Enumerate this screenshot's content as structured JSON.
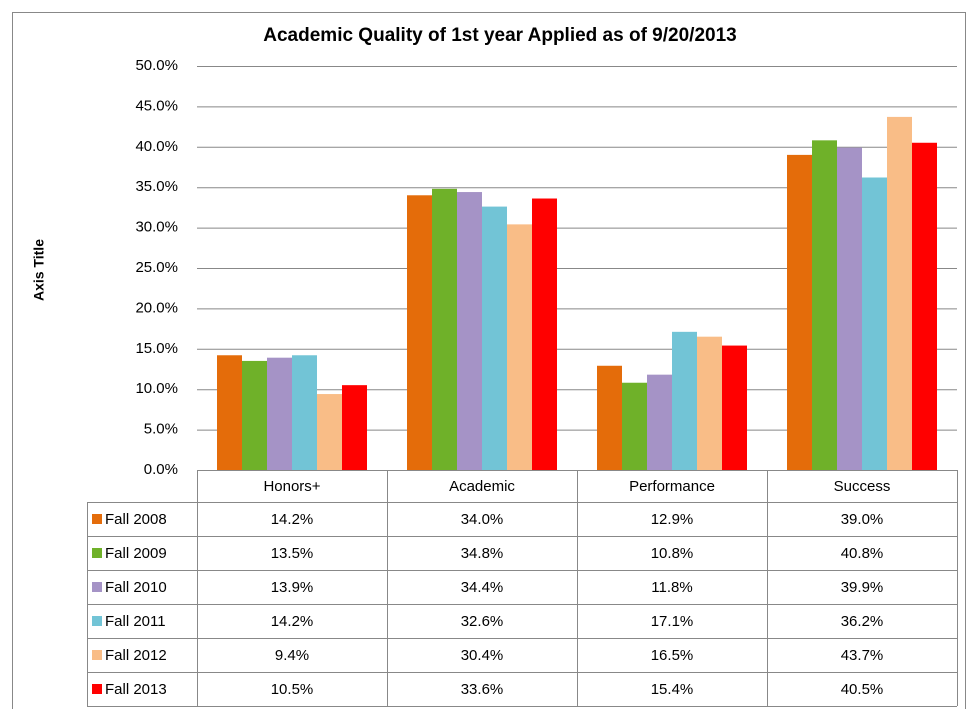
{
  "chart_data": {
    "type": "bar",
    "title": "Academic Quality of 1st year Applied as of 9/20/2013",
    "y_axis_label": "Axis Title",
    "categories": [
      "Honors+",
      "Academic",
      "Performance",
      "Success"
    ],
    "series": [
      {
        "name": "Fall 2008",
        "color": "#e46c0a",
        "values": [
          14.2,
          34.0,
          12.9,
          39.0
        ],
        "value_labels": [
          "14.2%",
          "34.0%",
          "12.9%",
          "39.0%"
        ]
      },
      {
        "name": "Fall 2009",
        "color": "#6fb129",
        "values": [
          13.5,
          34.8,
          10.8,
          40.8
        ],
        "value_labels": [
          "13.5%",
          "34.8%",
          "10.8%",
          "40.8%"
        ]
      },
      {
        "name": "Fall 2010",
        "color": "#a593c6",
        "values": [
          13.9,
          34.4,
          11.8,
          39.9
        ],
        "value_labels": [
          "13.9%",
          "34.4%",
          "11.8%",
          "39.9%"
        ]
      },
      {
        "name": "Fall 2011",
        "color": "#72c4d6",
        "values": [
          14.2,
          32.6,
          17.1,
          36.2
        ],
        "value_labels": [
          "14.2%",
          "32.6%",
          "17.1%",
          "36.2%"
        ]
      },
      {
        "name": "Fall 2012",
        "color": "#f9bd87",
        "values": [
          9.4,
          30.4,
          16.5,
          43.7
        ],
        "value_labels": [
          "9.4%",
          "30.4%",
          "16.5%",
          "43.7%"
        ]
      },
      {
        "name": "Fall 2013",
        "color": "#ff0000",
        "values": [
          10.5,
          33.6,
          15.4,
          40.5
        ],
        "value_labels": [
          "10.5%",
          "33.6%",
          "15.4%",
          "40.5%"
        ]
      }
    ],
    "ylim": [
      0,
      50
    ],
    "yticks": [
      {
        "value": 0,
        "label": "0.0%"
      },
      {
        "value": 5,
        "label": "5.0%"
      },
      {
        "value": 10,
        "label": "10.0%"
      },
      {
        "value": 15,
        "label": "15.0%"
      },
      {
        "value": 20,
        "label": "20.0%"
      },
      {
        "value": 25,
        "label": "25.0%"
      },
      {
        "value": 30,
        "label": "30.0%"
      },
      {
        "value": 35,
        "label": "35.0%"
      },
      {
        "value": 40,
        "label": "40.0%"
      },
      {
        "value": 45,
        "label": "45.0%"
      },
      {
        "value": 50,
        "label": "50.0%"
      }
    ],
    "grid": true
  }
}
